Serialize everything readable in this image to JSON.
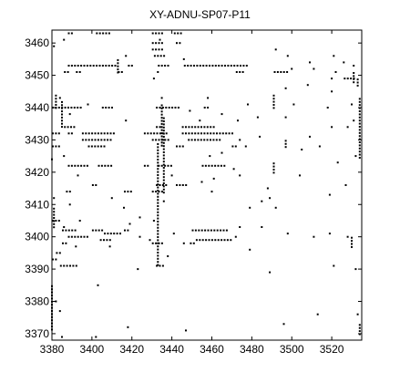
{
  "chart_data": {
    "type": "scatter",
    "title": "XY-ADNU-SP07-P11",
    "xlabel": "",
    "ylabel": "",
    "xlim": [
      3380,
      3535
    ],
    "ylim": [
      3368,
      3464
    ],
    "x_ticks": [
      3380,
      3400,
      3420,
      3440,
      3460,
      3480,
      3500,
      3520
    ],
    "y_ticks": [
      3370,
      3380,
      3390,
      3400,
      3410,
      3420,
      3430,
      3440,
      3450,
      3460
    ],
    "grid": false,
    "legend": "none",
    "marker_color": "#000000",
    "segments": [
      [
        3388,
        3391,
        3463
      ],
      [
        3402,
        3409,
        3463
      ],
      [
        3430,
        3436,
        3463
      ],
      [
        3441,
        3445,
        3463
      ],
      [
        3430,
        3436,
        3460
      ],
      [
        3442,
        3444,
        3460
      ],
      [
        3430,
        3435,
        3458
      ],
      [
        3431,
        3436,
        3456
      ],
      [
        3388,
        3412,
        3453
      ],
      [
        3418,
        3420,
        3453
      ],
      [
        3433,
        3438,
        3453
      ],
      [
        3446,
        3478,
        3453
      ],
      [
        3386,
        3388,
        3451
      ],
      [
        3392,
        3395,
        3451
      ],
      [
        3413,
        3416,
        3451
      ],
      [
        3472,
        3476,
        3451
      ],
      [
        3491,
        3498,
        3451
      ],
      [
        3526,
        3532,
        3449
      ],
      [
        3380,
        3395,
        3440
      ],
      [
        3405,
        3410,
        3440
      ],
      [
        3432,
        3444,
        3440
      ],
      [
        3456,
        3459,
        3440
      ],
      [
        3386,
        3392,
        3434
      ],
      [
        3432,
        3434,
        3434
      ],
      [
        3445,
        3462,
        3434
      ],
      [
        3380,
        3384,
        3432
      ],
      [
        3388,
        3391,
        3432
      ],
      [
        3395,
        3412,
        3432
      ],
      [
        3426,
        3438,
        3432
      ],
      [
        3445,
        3470,
        3432
      ],
      [
        3395,
        3410,
        3430
      ],
      [
        3430,
        3438,
        3430
      ],
      [
        3448,
        3465,
        3430
      ],
      [
        3380,
        3384,
        3428
      ],
      [
        3398,
        3406,
        3428
      ],
      [
        3442,
        3446,
        3428
      ],
      [
        3470,
        3473,
        3428
      ],
      [
        3388,
        3398,
        3422
      ],
      [
        3403,
        3410,
        3422
      ],
      [
        3426,
        3428,
        3422
      ],
      [
        3433,
        3440,
        3422
      ],
      [
        3455,
        3466,
        3422
      ],
      [
        3400,
        3403,
        3416
      ],
      [
        3432,
        3438,
        3416
      ],
      [
        3442,
        3447,
        3416
      ],
      [
        3387,
        3389,
        3414
      ],
      [
        3416,
        3420,
        3414
      ],
      [
        3430,
        3435,
        3414
      ],
      [
        3380,
        3384,
        3405
      ],
      [
        3385,
        3392,
        3402
      ],
      [
        3400,
        3405,
        3402
      ],
      [
        3406,
        3415,
        3401
      ],
      [
        3416,
        3418,
        3402
      ],
      [
        3450,
        3468,
        3402
      ],
      [
        3388,
        3398,
        3400
      ],
      [
        3404,
        3410,
        3399
      ],
      [
        3452,
        3470,
        3399
      ],
      [
        3385,
        3388,
        3398
      ],
      [
        3430,
        3436,
        3398
      ],
      [
        3449,
        3451,
        3398
      ],
      [
        3382,
        3384,
        3395
      ],
      [
        3380,
        3383,
        3393
      ],
      [
        3384,
        3392,
        3391
      ],
      [
        3432,
        3436,
        3391
      ]
    ],
    "vertical_streaks": [
      [
        3380,
        3371,
        3385
      ],
      [
        3381,
        3403,
        3409
      ],
      [
        3385,
        3434,
        3442
      ],
      [
        3435,
        3428,
        3441
      ],
      [
        3433,
        3391,
        3429
      ],
      [
        3436,
        3413,
        3437
      ],
      [
        3491,
        3420,
        3423
      ],
      [
        3491,
        3440,
        3444
      ],
      [
        3534,
        3424,
        3443
      ],
      [
        3534,
        3370,
        3373
      ],
      [
        3531,
        3448,
        3451
      ],
      [
        3530,
        3397,
        3400
      ],
      [
        3413,
        3451,
        3455
      ],
      [
        3497,
        3428,
        3430
      ],
      [
        3382,
        3440,
        3444
      ],
      [
        3533,
        3447,
        3449
      ]
    ],
    "points": [
      [
        3434,
        3461
      ],
      [
        3386,
        3461
      ],
      [
        3381,
        3459
      ],
      [
        3417,
        3456
      ],
      [
        3446,
        3455
      ],
      [
        3492,
        3458
      ],
      [
        3498,
        3456
      ],
      [
        3509,
        3454
      ],
      [
        3521,
        3456
      ],
      [
        3526,
        3454
      ],
      [
        3531,
        3453
      ],
      [
        3522,
        3451
      ],
      [
        3520,
        3449
      ],
      [
        3511,
        3452
      ],
      [
        3500,
        3452
      ],
      [
        3433,
        3451
      ],
      [
        3431,
        3449
      ],
      [
        3384,
        3443
      ],
      [
        3389,
        3438
      ],
      [
        3398,
        3441
      ],
      [
        3417,
        3436
      ],
      [
        3435,
        3443
      ],
      [
        3449,
        3439
      ],
      [
        3454,
        3436
      ],
      [
        3458,
        3443
      ],
      [
        3465,
        3438
      ],
      [
        3478,
        3441
      ],
      [
        3501,
        3441
      ],
      [
        3518,
        3440
      ],
      [
        3530,
        3441
      ],
      [
        3531,
        3436
      ],
      [
        3520,
        3434
      ],
      [
        3509,
        3431
      ],
      [
        3505,
        3427
      ],
      [
        3514,
        3428
      ],
      [
        3497,
        3437
      ],
      [
        3483,
        3437
      ],
      [
        3473,
        3436
      ],
      [
        3474,
        3430
      ],
      [
        3477,
        3428
      ],
      [
        3484,
        3431
      ],
      [
        3465,
        3426
      ],
      [
        3459,
        3425
      ],
      [
        3461,
        3418
      ],
      [
        3471,
        3421
      ],
      [
        3474,
        3419
      ],
      [
        3488,
        3415
      ],
      [
        3489,
        3412
      ],
      [
        3485,
        3411
      ],
      [
        3492,
        3409
      ],
      [
        3479,
        3409
      ],
      [
        3460,
        3414
      ],
      [
        3455,
        3417
      ],
      [
        3440,
        3419
      ],
      [
        3436,
        3411
      ],
      [
        3431,
        3405
      ],
      [
        3424,
        3406
      ],
      [
        3416,
        3409
      ],
      [
        3410,
        3412
      ],
      [
        3393,
        3419
      ],
      [
        3386,
        3425
      ],
      [
        3380,
        3424
      ],
      [
        3381,
        3412
      ],
      [
        3389,
        3410
      ],
      [
        3394,
        3405
      ],
      [
        3386,
        3403
      ],
      [
        3392,
        3397
      ],
      [
        3409,
        3397
      ],
      [
        3419,
        3404
      ],
      [
        3424,
        3400
      ],
      [
        3429,
        3399
      ],
      [
        3441,
        3401
      ],
      [
        3446,
        3398
      ],
      [
        3472,
        3400
      ],
      [
        3474,
        3403
      ],
      [
        3479,
        3396
      ],
      [
        3485,
        3403
      ],
      [
        3498,
        3401
      ],
      [
        3511,
        3400
      ],
      [
        3519,
        3401
      ],
      [
        3528,
        3400
      ],
      [
        3521,
        3391
      ],
      [
        3532,
        3390
      ],
      [
        3533,
        3376
      ],
      [
        3513,
        3376
      ],
      [
        3496,
        3373
      ],
      [
        3447,
        3371
      ],
      [
        3438,
        3394
      ],
      [
        3423,
        3390
      ],
      [
        3403,
        3385
      ],
      [
        3382,
        3380
      ],
      [
        3384,
        3377
      ],
      [
        3385,
        3369
      ],
      [
        3402,
        3369
      ],
      [
        3418,
        3372
      ],
      [
        3489,
        3389
      ],
      [
        3519,
        3413
      ],
      [
        3527,
        3416
      ],
      [
        3523,
        3423
      ],
      [
        3532,
        3425
      ],
      [
        3528,
        3434
      ],
      [
        3520,
        3445
      ],
      [
        3508,
        3447
      ],
      [
        3497,
        3446
      ],
      [
        3504,
        3419
      ]
    ]
  }
}
